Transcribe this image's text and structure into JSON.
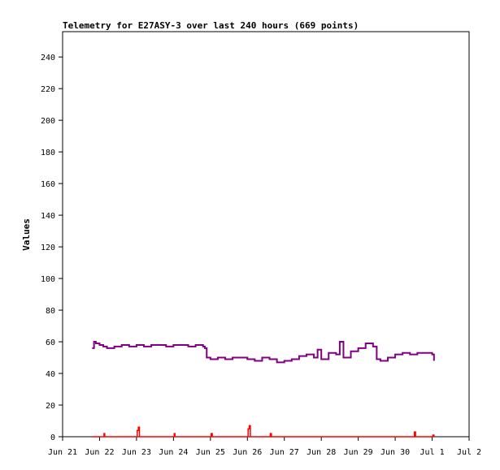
{
  "chart_data": {
    "type": "line",
    "title": "Telemetry for E27ASY-3 over last 240 hours (669 points)",
    "xlabel": "",
    "ylabel": "Values",
    "x_ticks": [
      "Jun 21",
      "Jun 22",
      "Jun 23",
      "Jun 24",
      "Jun 25",
      "Jun 26",
      "Jun 27",
      "Jun 28",
      "Jun 29",
      "Jun 30",
      "Jul 1",
      "Jul 2"
    ],
    "y_ticks": [
      0,
      20,
      40,
      60,
      80,
      100,
      120,
      140,
      160,
      180,
      200,
      220,
      240
    ],
    "xlim_days": [
      0,
      11
    ],
    "ylim": [
      0,
      256
    ],
    "grid": false,
    "series": [
      {
        "color": "#800080",
        "x_days": [
          0.8,
          0.85,
          0.9,
          1.0,
          1.1,
          1.2,
          1.4,
          1.6,
          1.8,
          2.0,
          2.2,
          2.4,
          2.6,
          2.8,
          3.0,
          3.2,
          3.4,
          3.6,
          3.8,
          3.85,
          3.9,
          4.0,
          4.2,
          4.4,
          4.6,
          4.8,
          5.0,
          5.2,
          5.4,
          5.6,
          5.8,
          6.0,
          6.2,
          6.4,
          6.6,
          6.8,
          6.9,
          7.0,
          7.2,
          7.4,
          7.5,
          7.6,
          7.8,
          8.0,
          8.2,
          8.4,
          8.5,
          8.6,
          8.8,
          9.0,
          9.2,
          9.4,
          9.6,
          9.8,
          10.0,
          10.05
        ],
        "values": [
          56,
          60,
          59,
          58,
          57,
          56,
          57,
          58,
          57,
          58,
          57,
          58,
          58,
          57,
          58,
          58,
          57,
          58,
          57,
          56,
          50,
          49,
          50,
          49,
          50,
          50,
          49,
          48,
          50,
          49,
          47,
          48,
          49,
          51,
          52,
          50,
          55,
          49,
          53,
          52,
          60,
          50,
          54,
          56,
          59,
          57,
          49,
          48,
          50,
          52,
          53,
          52,
          53,
          53,
          52,
          48
        ]
      },
      {
        "color": "#ff0000",
        "x_days": [
          0.8,
          1.1,
          1.12,
          1.14,
          1.5,
          2.0,
          2.02,
          2.05,
          2.08,
          2.5,
          3.0,
          3.02,
          3.04,
          3.5,
          4.0,
          4.02,
          4.05,
          4.6,
          5.0,
          5.02,
          5.05,
          5.08,
          5.5,
          5.6,
          5.62,
          5.65,
          6.0,
          6.5,
          7.0,
          8.0,
          9.0,
          9.5,
          9.52,
          9.55,
          10.0,
          10.02,
          10.05
        ],
        "values": [
          0,
          0,
          2,
          0,
          0,
          0,
          4,
          6,
          0,
          0,
          0,
          2,
          0,
          0,
          0,
          2,
          0,
          0,
          0,
          5,
          7,
          0,
          0,
          0,
          2,
          0,
          0,
          0,
          0,
          0,
          0,
          0,
          3,
          0,
          0,
          1,
          0
        ]
      }
    ]
  }
}
